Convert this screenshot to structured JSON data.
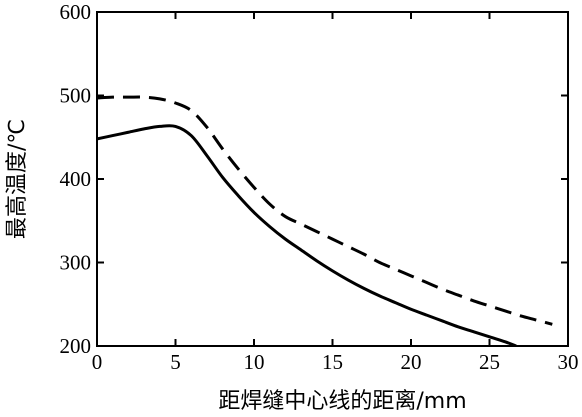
{
  "chart_data": {
    "type": "line",
    "title": "",
    "xlabel": "距焊缝中心线的距离/mm",
    "ylabel": "最高温度/℃",
    "xlim": [
      0,
      30
    ],
    "ylim": [
      200,
      600
    ],
    "xticks": [
      "0",
      "5",
      "10",
      "15",
      "20",
      "25",
      "30"
    ],
    "yticks": [
      "200",
      "300",
      "400",
      "500",
      "600"
    ],
    "grid": false,
    "legend": "none",
    "series": [
      {
        "style": "solid",
        "color": "#000000",
        "x": [
          0,
          1,
          2,
          3,
          4,
          5,
          6,
          7,
          8,
          9,
          10,
          11,
          12,
          13,
          14,
          15,
          16,
          17,
          18,
          19,
          20,
          21,
          22,
          23,
          24,
          25,
          26,
          26.7
        ],
        "y": [
          448,
          452,
          456,
          460,
          463,
          463,
          452,
          428,
          402,
          380,
          360,
          343,
          328,
          315,
          302,
          290,
          279,
          269,
          260,
          252,
          244,
          237,
          230,
          223,
          217,
          211,
          205,
          200
        ]
      },
      {
        "style": "dashed",
        "color": "#000000",
        "x": [
          0,
          1,
          2,
          3,
          4,
          5,
          6,
          7,
          8,
          9,
          10,
          11,
          12,
          13,
          14,
          15,
          16,
          17,
          18,
          19,
          20,
          21,
          22,
          23,
          24,
          25,
          26,
          27,
          28,
          29
        ],
        "y": [
          497,
          498,
          498,
          498,
          496,
          491,
          482,
          462,
          436,
          412,
          390,
          370,
          355,
          346,
          337,
          328,
          319,
          310,
          300,
          292,
          284,
          276,
          268,
          261,
          254,
          248,
          242,
          236,
          231,
          226
        ]
      }
    ]
  }
}
